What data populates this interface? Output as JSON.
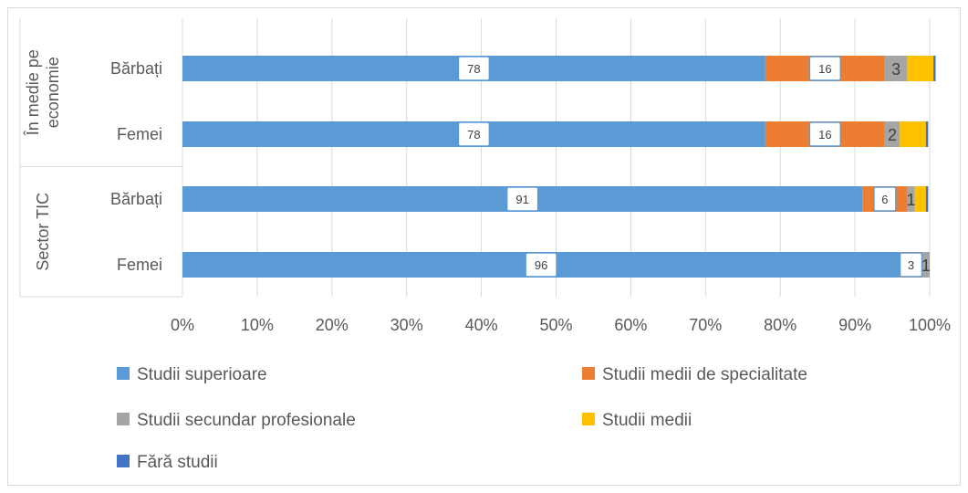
{
  "chart_data": {
    "type": "bar",
    "orientation": "horizontal",
    "stacked": "percent",
    "groups": [
      {
        "label": "În medie pe economie",
        "label_lines": [
          "În medie pe",
          "economie"
        ],
        "categories": [
          "Bărbați",
          "Femei"
        ]
      },
      {
        "label": "Sector TIC",
        "label_lines": [
          "Sector TIC"
        ],
        "categories": [
          "Bărbați",
          "Femei"
        ]
      }
    ],
    "rows": [
      {
        "group": "În medie pe economie",
        "category": "Bărbați"
      },
      {
        "group": "În medie pe economie",
        "category": "Femei"
      },
      {
        "group": "Sector TIC",
        "category": "Bărbați"
      },
      {
        "group": "Sector TIC",
        "category": "Femei"
      }
    ],
    "series": [
      {
        "name": "Studii superioare",
        "color": "#5b9bd5",
        "values": [
          78,
          78,
          91,
          96
        ],
        "labels": [
          "78",
          "78",
          "91",
          "96"
        ],
        "label_style": "box"
      },
      {
        "name": "Studii medii de specialitate",
        "color": "#ed7d31",
        "values": [
          16,
          16,
          6,
          3
        ],
        "labels": [
          "16",
          "16",
          "6",
          "3"
        ],
        "label_style": "box"
      },
      {
        "name": "Studii secundar profesionale",
        "color": "#a5a5a5",
        "values": [
          3,
          2,
          1,
          1
        ],
        "labels": [
          "3",
          "2",
          "1",
          "1"
        ],
        "label_style": "plain"
      },
      {
        "name": "Studii medii",
        "color": "#ffc000",
        "values": [
          3.5,
          3.5,
          1.5,
          0
        ],
        "labels": [
          "",
          "",
          "",
          ""
        ],
        "label_style": "none"
      },
      {
        "name": "Fără studii",
        "color": "#4472c4",
        "values": [
          0.3,
          0.3,
          0.3,
          0
        ],
        "labels": [
          "",
          "",
          "",
          ""
        ],
        "label_style": "none"
      }
    ],
    "xlim": [
      0,
      100
    ],
    "xticks": [
      "0%",
      "10%",
      "20%",
      "30%",
      "40%",
      "50%",
      "60%",
      "70%",
      "80%",
      "90%",
      "100%"
    ],
    "grid": true,
    "legend_position": "bottom",
    "title": "",
    "xlabel": "",
    "ylabel": ""
  }
}
